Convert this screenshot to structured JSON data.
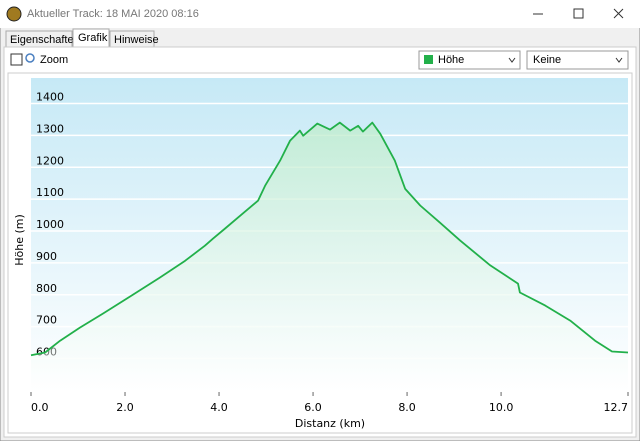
{
  "window": {
    "title": "Aktueller Track: 18 MAI 2020 08:16"
  },
  "tabs": [
    "Eigenschaften",
    "Grafik",
    "Hinweise"
  ],
  "controls": {
    "zoom": "Zoom",
    "series_select": "Höhe",
    "second_select": "Keine"
  },
  "chart_data": {
    "type": "line",
    "color": "#22b04a",
    "x_label": "Distanz  (km)",
    "y_label": "Höhe (m)",
    "x": [
      0,
      0.3,
      0.62,
      1.04,
      1.53,
      2.1,
      2.74,
      3.28,
      3.7,
      3.87,
      4.13,
      4.45,
      4.83,
      4.98,
      5.3,
      5.51,
      5.72,
      5.79,
      6.09,
      6.36,
      6.57,
      6.79,
      6.96,
      7.06,
      7.26,
      7.43,
      7.74,
      7.96,
      8.28,
      8.7,
      9.13,
      9.77,
      10.36,
      10.4,
      10.94,
      11.47,
      12.0,
      12.36,
      12.7
    ],
    "values": [
      610,
      619,
      656,
      697,
      741,
      794,
      854,
      907,
      954,
      976,
      1008,
      1048,
      1095,
      1142,
      1221,
      1283,
      1315,
      1299,
      1337,
      1318,
      1340,
      1315,
      1330,
      1312,
      1340,
      1305,
      1221,
      1132,
      1080,
      1026,
      970,
      892,
      835,
      807,
      766,
      719,
      656,
      622,
      619
    ],
    "xlim": [
      0,
      12.7
    ],
    "ylim": [
      495,
      1480
    ],
    "xticks": [
      {
        "value": 0,
        "label": "0.0"
      },
      {
        "value": 2,
        "label": "2.0"
      },
      {
        "value": 4,
        "label": "4.0"
      },
      {
        "value": 6,
        "label": "6.0"
      },
      {
        "value": 8,
        "label": "8.0"
      },
      {
        "value": 10,
        "label": "10.0"
      },
      12.7
    ],
    "yticks": [
      600,
      700,
      800,
      900,
      1000,
      1100,
      1200,
      1300,
      1400
    ],
    "grid": true
  }
}
